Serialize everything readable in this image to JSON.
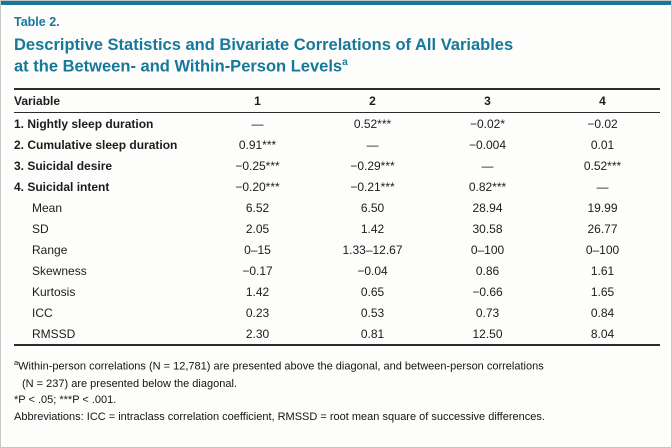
{
  "colors": {
    "accent": "#16789a"
  },
  "header": {
    "table_label": "Table 2.",
    "title_line1": "Descriptive Statistics and Bivariate Correlations of All Variables",
    "title_line2": "at the Between- and Within-Person Levels",
    "title_superscript": "a"
  },
  "table": {
    "columns": [
      "Variable",
      "1",
      "2",
      "3",
      "4"
    ],
    "rows": [
      {
        "label": "1. Nightly sleep duration",
        "bold": true,
        "indent": false,
        "values": [
          "—",
          "0.52***",
          "−0.02*",
          "−0.02"
        ]
      },
      {
        "label": "2. Cumulative sleep duration",
        "bold": true,
        "indent": false,
        "values": [
          "0.91***",
          "—",
          "−0.004",
          "0.01"
        ]
      },
      {
        "label": "3. Suicidal desire",
        "bold": true,
        "indent": false,
        "values": [
          "−0.25***",
          "−0.29***",
          "—",
          "0.52***"
        ]
      },
      {
        "label": "4. Suicidal intent",
        "bold": true,
        "indent": false,
        "values": [
          "−0.20***",
          "−0.21***",
          "0.82***",
          "—"
        ]
      },
      {
        "label": "Mean",
        "bold": false,
        "indent": true,
        "values": [
          "6.52",
          "6.50",
          "28.94",
          "19.99"
        ]
      },
      {
        "label": "SD",
        "bold": false,
        "indent": true,
        "values": [
          "2.05",
          "1.42",
          "30.58",
          "26.77"
        ]
      },
      {
        "label": "Range",
        "bold": false,
        "indent": true,
        "values": [
          "0–15",
          "1.33–12.67",
          "0–100",
          "0–100"
        ]
      },
      {
        "label": "Skewness",
        "bold": false,
        "indent": true,
        "values": [
          "−0.17",
          "−0.04",
          "0.86",
          "1.61"
        ]
      },
      {
        "label": "Kurtosis",
        "bold": false,
        "indent": true,
        "values": [
          "1.42",
          "0.65",
          "−0.66",
          "1.65"
        ]
      },
      {
        "label": "ICC",
        "bold": false,
        "indent": true,
        "values": [
          "0.23",
          "0.53",
          "0.73",
          "0.84"
        ]
      },
      {
        "label": "RMSSD",
        "bold": false,
        "indent": true,
        "values": [
          "2.30",
          "0.81",
          "12.50",
          "8.04"
        ]
      }
    ]
  },
  "footnotes": {
    "note_a_superscript": "a",
    "note_a_line1": "Within-person correlations (N = 12,781) are presented above the diagonal, and between-person correlations",
    "note_a_line2": "(N = 237) are presented below the diagonal.",
    "significance": "*P < .05; ***P < .001.",
    "abbreviations": "Abbreviations: ICC = intraclass correlation coefficient, RMSSD = root mean square of successive differences."
  }
}
